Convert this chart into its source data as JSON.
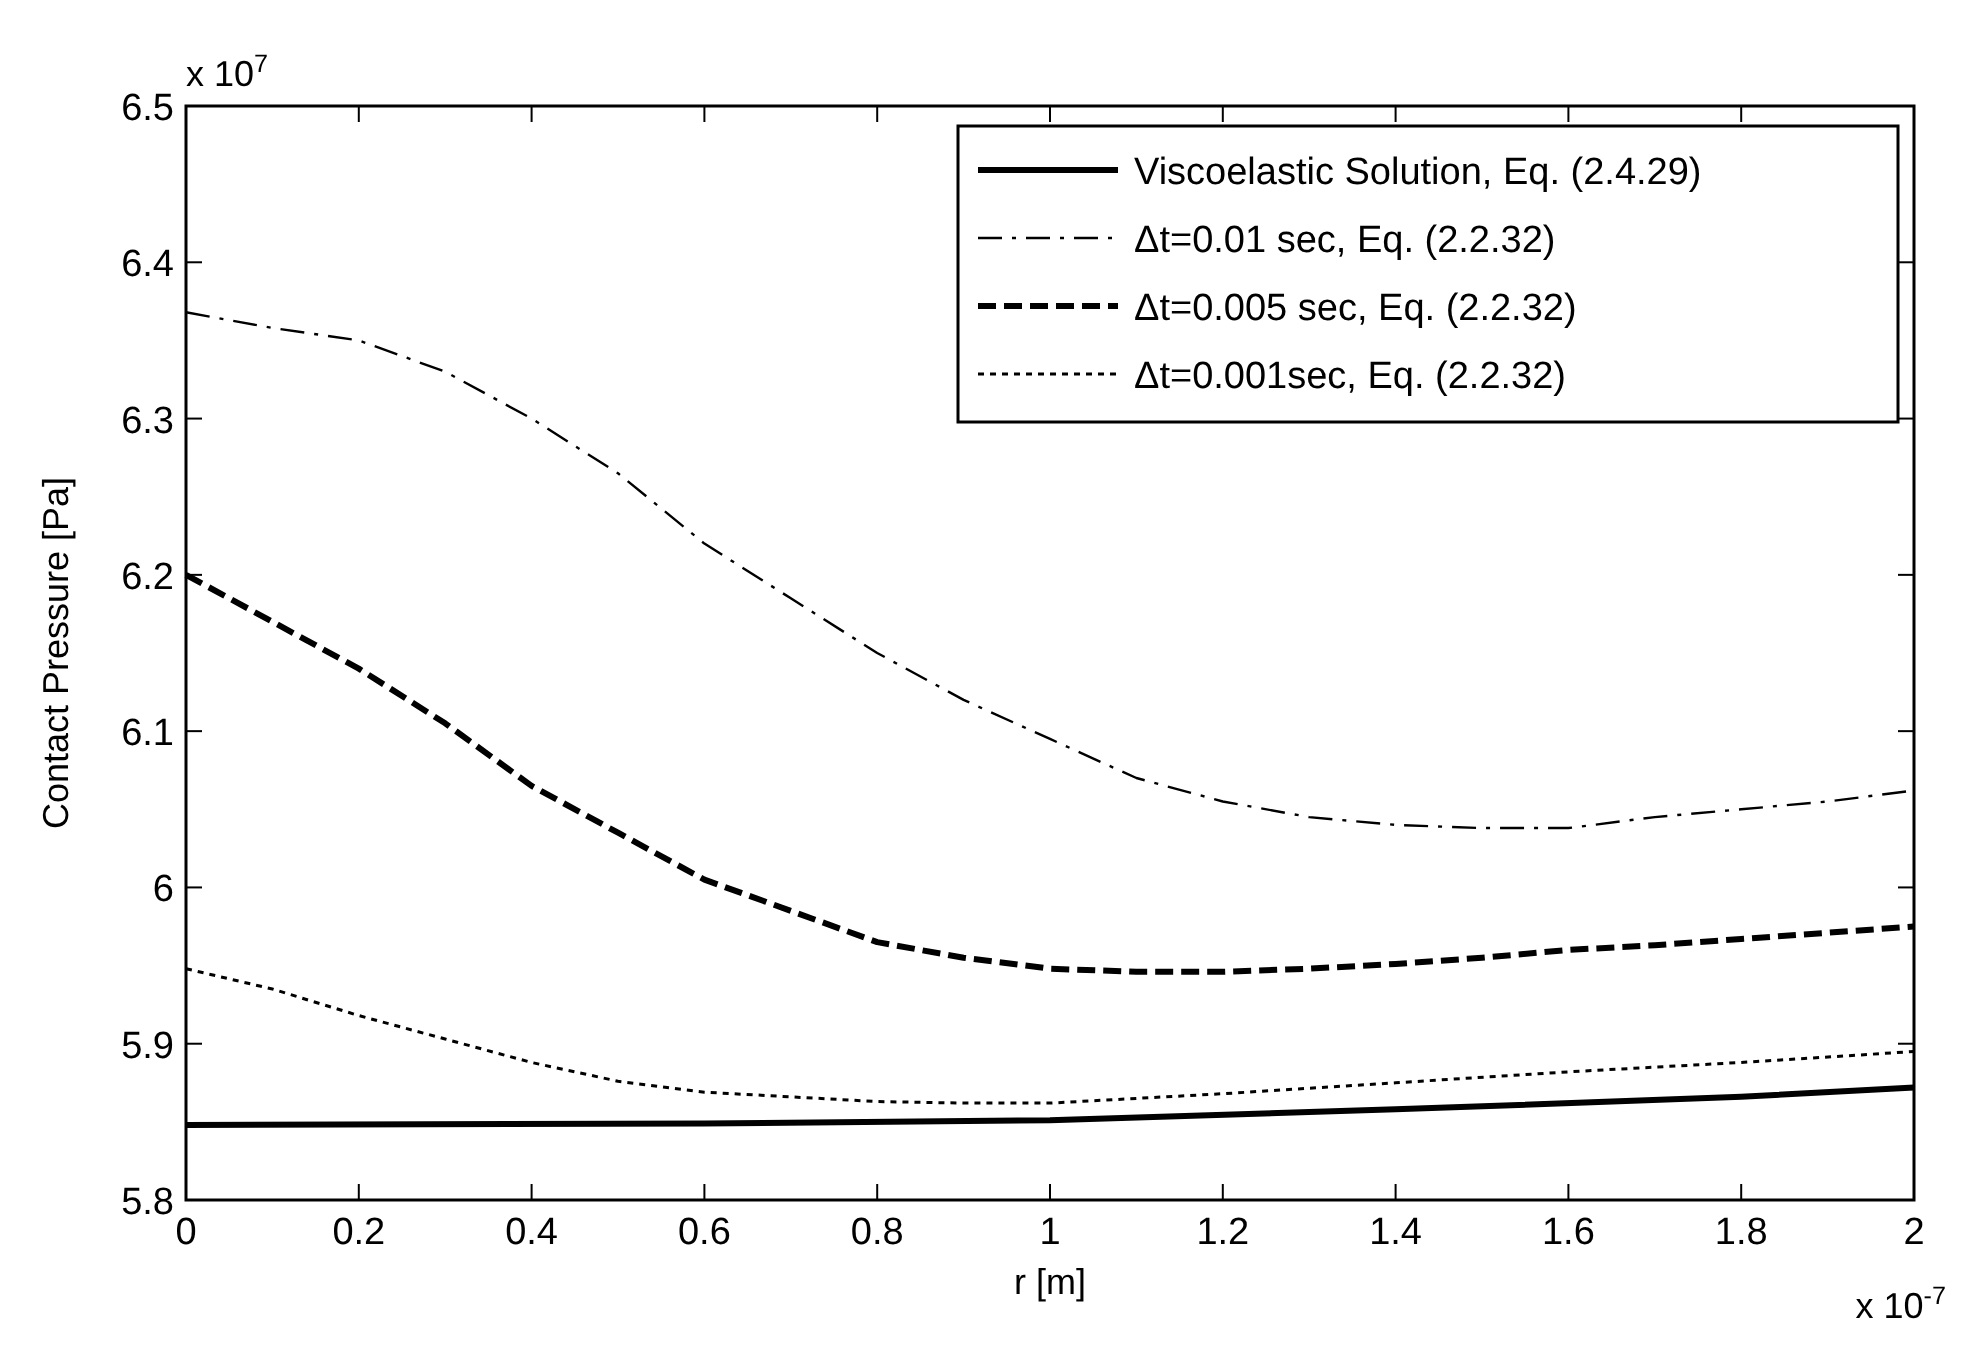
{
  "chart_data": {
    "type": "line",
    "xlabel": "r [m]",
    "ylabel": "Contact Pressure [Pa]",
    "xlim": [
      0,
      2
    ],
    "xticks": [
      0,
      0.2,
      0.4,
      0.6,
      0.8,
      1,
      1.2,
      1.4,
      1.6,
      1.8,
      2
    ],
    "ylim": [
      5.8,
      6.5
    ],
    "yticks": [
      5.8,
      5.9,
      6,
      6.1,
      6.2,
      6.3,
      6.4,
      6.5
    ],
    "grid": false,
    "legend": "top right",
    "annotations": [
      "x 10$^{7}$",
      "x 10$^{-7}$"
    ],
    "series": [
      {
        "name": "Viscoelastic Solution, Eq. (2.4.29)",
        "color": "#000000",
        "line_style": "solid",
        "x": [
          0,
          0.6,
          1,
          1.4,
          1.8,
          2
        ],
        "values": [
          5.848,
          5.849,
          5.851,
          5.858,
          5.866,
          5.872
        ]
      },
      {
        "name": "Δt=0.01 sec, Eq. (2.2.32)",
        "color": "#000000",
        "line_style": "dashdot",
        "x": [
          0,
          0.1,
          0.2,
          0.3,
          0.4,
          0.5,
          0.6,
          0.7,
          0.8,
          0.9,
          1,
          1.1,
          1.2,
          1.3,
          1.4,
          1.5,
          1.6,
          1.7,
          1.8,
          1.9,
          2
        ],
        "values": [
          6.368,
          6.358,
          6.35,
          6.33,
          6.3,
          6.265,
          6.22,
          6.185,
          6.15,
          6.12,
          6.095,
          6.07,
          6.055,
          6.045,
          6.04,
          6.038,
          6.038,
          6.045,
          6.05,
          6.055,
          6.062
        ]
      },
      {
        "name": "Δt=0.005 sec, Eq. (2.2.32)",
        "color": "#000000",
        "line_style": "dashed",
        "x": [
          0,
          0.1,
          0.2,
          0.3,
          0.4,
          0.5,
          0.6,
          0.7,
          0.8,
          0.9,
          1,
          1.1,
          1.2,
          1.3,
          1.4,
          1.5,
          1.6,
          1.7,
          1.8,
          1.9,
          2
        ],
        "values": [
          6.2,
          6.17,
          6.14,
          6.105,
          6.065,
          6.035,
          6.005,
          5.985,
          5.965,
          5.955,
          5.948,
          5.946,
          5.946,
          5.948,
          5.951,
          5.955,
          5.96,
          5.963,
          5.967,
          5.971,
          5.975
        ]
      },
      {
        "name": "Δt=0.001sec, Eq. (2.2.32)",
        "color": "#000000",
        "line_style": "dotted",
        "x": [
          0,
          0.1,
          0.2,
          0.3,
          0.4,
          0.5,
          0.6,
          0.7,
          0.8,
          0.9,
          1,
          1.2,
          1.4,
          1.6,
          1.8,
          2
        ],
        "values": [
          5.948,
          5.935,
          5.918,
          5.903,
          5.888,
          5.876,
          5.869,
          5.866,
          5.863,
          5.862,
          5.862,
          5.868,
          5.875,
          5.882,
          5.888,
          5.895
        ]
      }
    ]
  }
}
